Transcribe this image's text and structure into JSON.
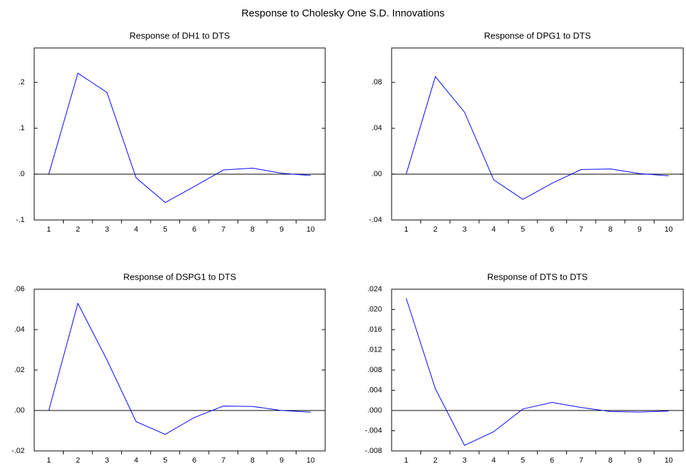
{
  "title": "Response to Cholesky One S.D. Innovations",
  "chart_data": [
    {
      "type": "line",
      "title": "Response of DH1 to DTS",
      "categories": [
        "1",
        "2",
        "3",
        "4",
        "5",
        "6",
        "7",
        "8",
        "9",
        "10"
      ],
      "values": [
        0,
        0.22,
        0.178,
        -0.008,
        -0.062,
        -0.027,
        0.009,
        0.013,
        0.002,
        -0.003
      ],
      "color": "#0000ff",
      "ylim": [
        -0.1,
        0.275
      ],
      "yticks": [
        {
          "value": -0.1,
          "label": "-.1"
        },
        {
          "value": 0,
          "label": ".0"
        },
        {
          "value": 0.1,
          "label": ".1"
        },
        {
          "value": 0.2,
          "label": ".2"
        }
      ]
    },
    {
      "type": "line",
      "title": "Response of DPG1 to DTS",
      "categories": [
        "1",
        "2",
        "3",
        "4",
        "5",
        "6",
        "7",
        "8",
        "9",
        "10"
      ],
      "values": [
        0,
        0.085,
        0.054,
        -0.005,
        -0.022,
        -0.008,
        0.004,
        0.0045,
        0.0005,
        -0.0015
      ],
      "color": "#0000ff",
      "ylim": [
        -0.04,
        0.11
      ],
      "yticks": [
        {
          "value": -0.04,
          "label": "-.04"
        },
        {
          "value": 0,
          "label": ".00"
        },
        {
          "value": 0.04,
          "label": ".04"
        },
        {
          "value": 0.08,
          "label": ".08"
        }
      ]
    },
    {
      "type": "line",
      "title": "Response of DSPG1 to DTS",
      "categories": [
        "1",
        "2",
        "3",
        "4",
        "5",
        "6",
        "7",
        "8",
        "9",
        "10"
      ],
      "values": [
        0,
        0.053,
        0.025,
        -0.0055,
        -0.0118,
        -0.0035,
        0.0022,
        0.002,
        0,
        -0.0008
      ],
      "color": "#0000ff",
      "ylim": [
        -0.02,
        0.06
      ],
      "yticks": [
        {
          "value": -0.02,
          "label": "-.02"
        },
        {
          "value": 0,
          "label": ".00"
        },
        {
          "value": 0.02,
          "label": ".02"
        },
        {
          "value": 0.04,
          "label": ".04"
        },
        {
          "value": 0.06,
          "label": ".06"
        }
      ]
    },
    {
      "type": "line",
      "title": "Response of DTS to DTS",
      "categories": [
        "1",
        "2",
        "3",
        "4",
        "5",
        "6",
        "7",
        "8",
        "9",
        "10"
      ],
      "values": [
        0.0222,
        0.0043,
        -0.0069,
        -0.0042,
        0.0003,
        0.0016,
        0.0006,
        -0.0002,
        -0.0003,
        -0.0001
      ],
      "color": "#0000ff",
      "ylim": [
        -0.008,
        0.024
      ],
      "yticks": [
        {
          "value": -0.008,
          "label": "-.008"
        },
        {
          "value": -0.004,
          "label": "-.004"
        },
        {
          "value": 0,
          "label": ".000"
        },
        {
          "value": 0.004,
          "label": ".004"
        },
        {
          "value": 0.008,
          "label": ".008"
        },
        {
          "value": 0.012,
          "label": ".012"
        },
        {
          "value": 0.016,
          "label": ".016"
        },
        {
          "value": 0.02,
          "label": ".020"
        },
        {
          "value": 0.024,
          "label": ".024"
        }
      ]
    }
  ]
}
